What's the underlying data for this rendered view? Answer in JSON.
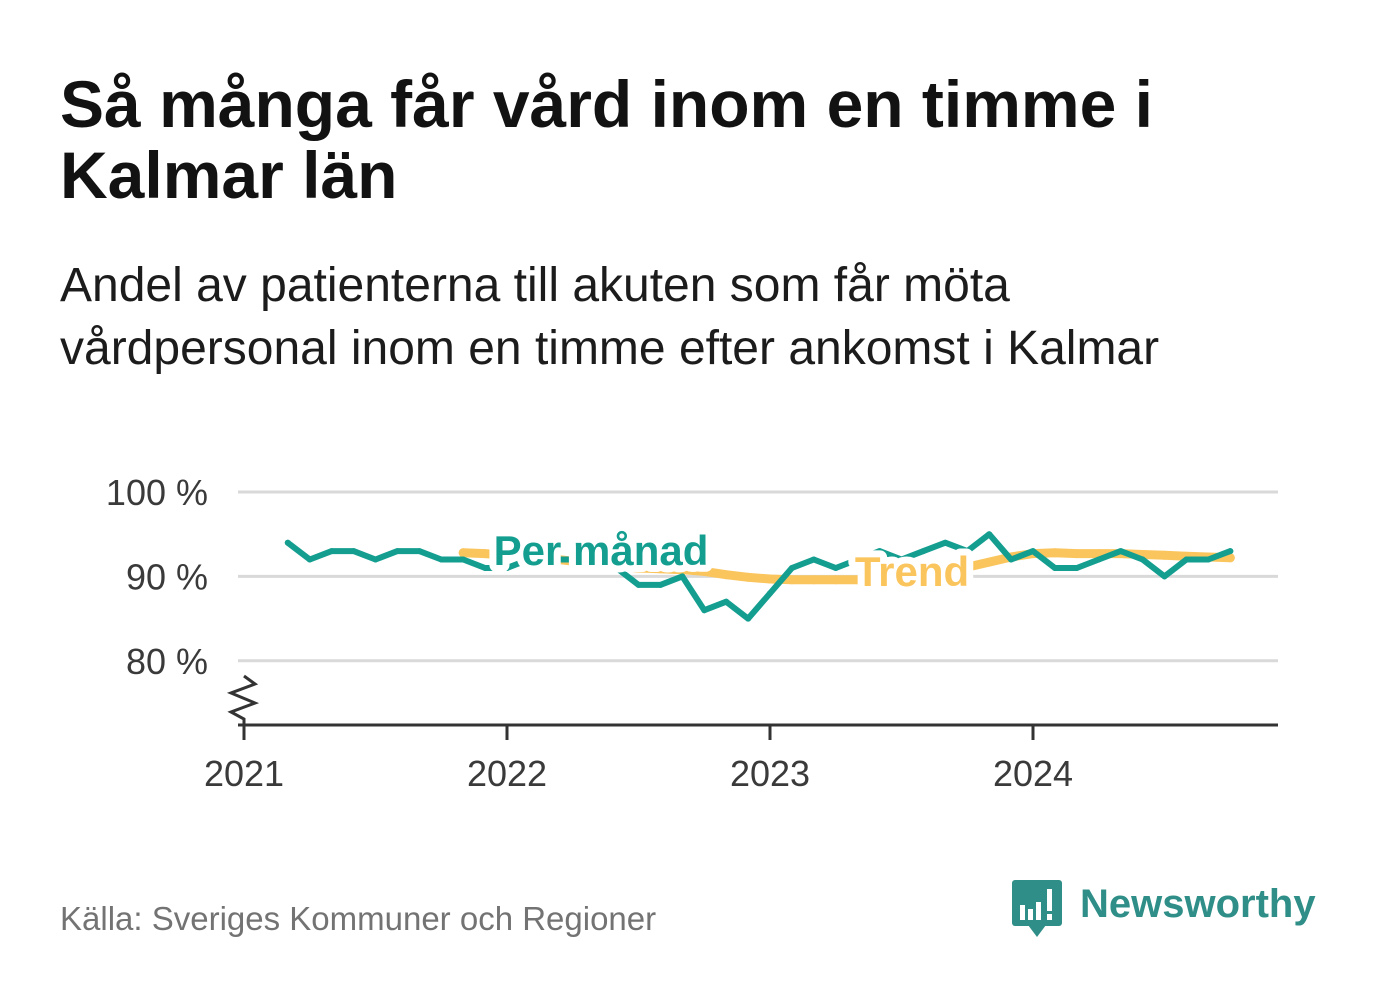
{
  "source": "Källa: Sveriges Kommuner och Regioner",
  "logo": {
    "text": "Newsworthy",
    "icon": "newsworthy-bar-chart-bubble-icon"
  },
  "colors": {
    "background": "#ffffff",
    "title": "#121212",
    "subtitle": "#1c1c1c",
    "gridline": "#d9d9d9",
    "axis": "#333333",
    "tick_label": "#3a3a3a",
    "source": "#737373",
    "logo": "#2f8f88"
  },
  "chart_data": {
    "type": "line",
    "title": "Så många får vård inom en timme i Kalmar län",
    "subtitle": "Andel av patienterna till akuten som får möta vårdpersonal inom en timme efter ankomst i Kalmar",
    "grid": "horizontal",
    "legend": "inline",
    "xlim": [
      "2021-01",
      "2024-12"
    ],
    "x_ticks": [
      "2021-01",
      "2022-01",
      "2023-01",
      "2024-01"
    ],
    "x_tick_labels": [
      "2021",
      "2022",
      "2023",
      "2024"
    ],
    "ylim": [
      72.4,
      100
    ],
    "y_ticks": [
      100,
      90,
      80
    ],
    "y_tick_labels": [
      "100 %",
      "90 %",
      "80 %"
    ],
    "y_axis_break": true,
    "x": [
      "2021-03",
      "2021-04",
      "2021-05",
      "2021-06",
      "2021-07",
      "2021-08",
      "2021-09",
      "2021-10",
      "2021-11",
      "2021-12",
      "2022-01",
      "2022-02",
      "2022-03",
      "2022-04",
      "2022-05",
      "2022-06",
      "2022-07",
      "2022-08",
      "2022-09",
      "2022-10",
      "2022-11",
      "2022-12",
      "2023-01",
      "2023-02",
      "2023-03",
      "2023-04",
      "2023-05",
      "2023-06",
      "2023-07",
      "2023-08",
      "2023-09",
      "2023-10",
      "2023-11",
      "2023-12",
      "2024-01",
      "2024-02",
      "2024-03",
      "2024-04",
      "2024-05",
      "2024-06",
      "2024-07",
      "2024-08",
      "2024-09",
      "2024-10"
    ],
    "series": [
      {
        "name": "Per månad",
        "color": "#149e90",
        "values": [
          94,
          92,
          93,
          93,
          92,
          93,
          93,
          92,
          92,
          91,
          91,
          92,
          92,
          92,
          91,
          91,
          89,
          89,
          90,
          86,
          87,
          85,
          88,
          91,
          92,
          91,
          92,
          93,
          92,
          93,
          94,
          93,
          95,
          92,
          93,
          91,
          91,
          92,
          93,
          92,
          90,
          92,
          92,
          93
        ]
      },
      {
        "name": "Trend",
        "color": "#fbc55d",
        "values": [
          null,
          null,
          null,
          null,
          null,
          null,
          null,
          null,
          92.8,
          92.7,
          92.5,
          92.3,
          92.1,
          91.8,
          91.5,
          91.2,
          91.0,
          90.9,
          90.8,
          90.6,
          90.2,
          89.9,
          89.7,
          89.6,
          89.6,
          89.6,
          89.6,
          89.7,
          89.9,
          90.2,
          90.6,
          91.1,
          91.7,
          92.3,
          92.7,
          92.8,
          92.7,
          92.7,
          92.7,
          92.6,
          92.5,
          92.4,
          92.3,
          92.2
        ]
      }
    ]
  }
}
